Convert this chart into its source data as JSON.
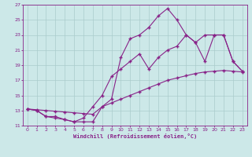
{
  "xlabel": "Windchill (Refroidissement éolien,°C)",
  "bg_color": "#cce8e8",
  "line_color": "#882288",
  "grid_color": "#aacccc",
  "xlim": [
    -0.5,
    23.5
  ],
  "ylim": [
    11,
    27
  ],
  "xticks": [
    0,
    1,
    2,
    3,
    4,
    5,
    6,
    7,
    8,
    9,
    10,
    11,
    12,
    13,
    14,
    15,
    16,
    17,
    18,
    19,
    20,
    21,
    22,
    23
  ],
  "yticks": [
    11,
    13,
    15,
    17,
    19,
    21,
    23,
    25,
    27
  ],
  "line1_x": [
    0,
    1,
    2,
    3,
    4,
    5,
    6,
    7,
    8,
    9,
    10,
    11,
    12,
    13,
    14,
    15,
    16,
    17,
    18,
    19,
    20,
    21,
    22,
    23
  ],
  "line1_y": [
    13.2,
    13.1,
    13.0,
    12.9,
    12.8,
    12.7,
    12.6,
    12.5,
    13.5,
    14.0,
    14.5,
    15.0,
    15.5,
    16.0,
    16.5,
    17.0,
    17.3,
    17.6,
    17.9,
    18.1,
    18.2,
    18.3,
    18.2,
    18.1
  ],
  "line2_x": [
    0,
    1,
    2,
    3,
    4,
    5,
    6,
    7,
    8,
    9,
    10,
    11,
    12,
    13,
    14,
    15,
    16,
    17,
    18,
    19,
    20,
    21,
    22,
    23
  ],
  "line2_y": [
    13.2,
    13.0,
    12.2,
    12.2,
    11.8,
    11.5,
    12.0,
    13.5,
    15.0,
    17.5,
    18.5,
    19.5,
    20.5,
    18.5,
    20.0,
    21.0,
    21.5,
    23.0,
    22.0,
    23.0,
    23.0,
    23.0,
    19.5,
    18.2
  ],
  "line3_x": [
    0,
    1,
    2,
    3,
    4,
    5,
    6,
    7,
    8,
    9,
    10,
    11,
    12,
    13,
    14,
    15,
    16,
    17,
    18,
    19,
    20,
    21,
    22,
    23
  ],
  "line3_y": [
    13.2,
    13.0,
    12.2,
    12.0,
    11.8,
    11.5,
    11.5,
    11.5,
    13.5,
    14.5,
    20.0,
    22.5,
    23.0,
    24.0,
    25.5,
    26.5,
    25.0,
    23.0,
    22.0,
    19.5,
    23.0,
    23.0,
    19.5,
    18.2
  ]
}
